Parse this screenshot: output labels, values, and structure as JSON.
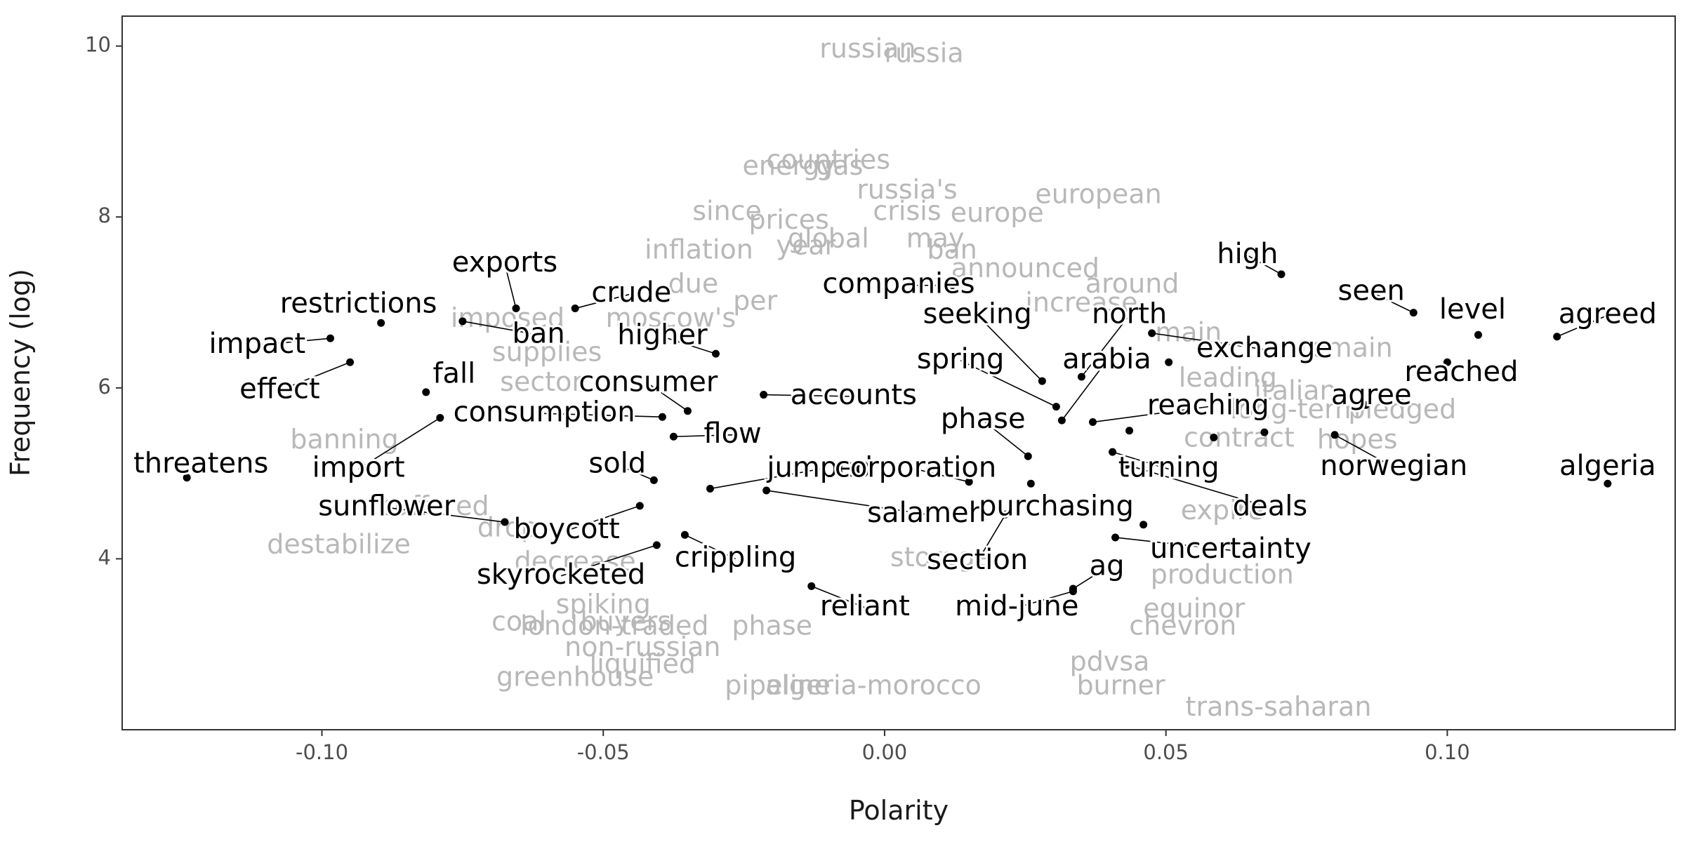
{
  "chart_data": {
    "type": "scatter",
    "xlabel": "Polarity",
    "ylabel": "Frequency (log)",
    "xlim": [
      -0.1355,
      0.1405
    ],
    "ylim": [
      2.0,
      10.35
    ],
    "x_ticks": [
      -0.1,
      -0.05,
      0.0,
      0.05,
      0.1
    ],
    "x_tick_labels": [
      "-0.10",
      "-0.05",
      "0.00",
      "0.05",
      "0.10"
    ],
    "y_ticks": [
      4,
      6,
      8,
      10
    ],
    "y_tick_labels": [
      "4",
      "6",
      "8",
      "10"
    ],
    "grid": false,
    "colors": {
      "point": "#000000",
      "background_words": "#b8b8b8",
      "panel_border": "#333333"
    },
    "background_words": [
      {
        "label": "russian",
        "x": -0.003,
        "y": 9.95
      },
      {
        "label": "russia",
        "x": 0.007,
        "y": 9.9
      },
      {
        "label": "countries",
        "x": -0.01,
        "y": 8.65
      },
      {
        "label": "energy",
        "x": -0.017,
        "y": 8.58
      },
      {
        "label": "gas",
        "x": -0.008,
        "y": 8.58
      },
      {
        "label": "russia's",
        "x": 0.004,
        "y": 8.3
      },
      {
        "label": "european",
        "x": 0.038,
        "y": 8.25
      },
      {
        "label": "since",
        "x": -0.028,
        "y": 8.05
      },
      {
        "label": "crisis",
        "x": 0.004,
        "y": 8.05
      },
      {
        "label": "europe",
        "x": 0.02,
        "y": 8.03
      },
      {
        "label": "prices",
        "x": -0.017,
        "y": 7.95
      },
      {
        "label": "global",
        "x": -0.01,
        "y": 7.73
      },
      {
        "label": "may",
        "x": 0.009,
        "y": 7.73
      },
      {
        "label": "year",
        "x": -0.014,
        "y": 7.65
      },
      {
        "label": "ban",
        "x": 0.012,
        "y": 7.6
      },
      {
        "label": "inflation",
        "x": -0.033,
        "y": 7.6
      },
      {
        "label": "announced",
        "x": 0.025,
        "y": 7.38
      },
      {
        "label": "around",
        "x": 0.044,
        "y": 7.2
      },
      {
        "label": "due",
        "x": -0.034,
        "y": 7.2
      },
      {
        "label": "per",
        "x": -0.023,
        "y": 7.0
      },
      {
        "label": "moscow's",
        "x": -0.038,
        "y": 6.8
      },
      {
        "label": "imposed",
        "x": -0.067,
        "y": 6.8
      },
      {
        "label": "increase",
        "x": 0.035,
        "y": 6.98
      },
      {
        "label": "main",
        "x": 0.054,
        "y": 6.63
      },
      {
        "label": "remain",
        "x": 0.082,
        "y": 6.45
      },
      {
        "label": "leading",
        "x": 0.061,
        "y": 6.1
      },
      {
        "label": "italian",
        "x": 0.073,
        "y": 5.95
      },
      {
        "label": "pledged",
        "x": 0.092,
        "y": 5.73
      },
      {
        "label": "long-term",
        "x": 0.073,
        "y": 5.73
      },
      {
        "label": "contract",
        "x": 0.063,
        "y": 5.4
      },
      {
        "label": "hopes",
        "x": 0.084,
        "y": 5.38
      },
      {
        "label": "banning",
        "x": -0.096,
        "y": 5.38
      },
      {
        "label": "supplies",
        "x": -0.06,
        "y": 6.4
      },
      {
        "label": "sector",
        "x": -0.061,
        "y": 6.05
      },
      {
        "label": "suffered",
        "x": -0.08,
        "y": 4.6
      },
      {
        "label": "destabilize",
        "x": -0.097,
        "y": 4.15
      },
      {
        "label": "drop",
        "x": -0.067,
        "y": 4.35
      },
      {
        "label": "decrease",
        "x": -0.055,
        "y": 3.95
      },
      {
        "label": "spiking",
        "x": -0.05,
        "y": 3.45
      },
      {
        "label": "coal",
        "x": -0.065,
        "y": 3.25
      },
      {
        "label": "buyers",
        "x": -0.046,
        "y": 3.25
      },
      {
        "label": "london-traded",
        "x": -0.048,
        "y": 3.2
      },
      {
        "label": "phase",
        "x": -0.02,
        "y": 3.2
      },
      {
        "label": "non-russian",
        "x": -0.043,
        "y": 2.95
      },
      {
        "label": "liquified",
        "x": -0.043,
        "y": 2.75
      },
      {
        "label": "greenhouse",
        "x": -0.055,
        "y": 2.6
      },
      {
        "label": "pipeline",
        "x": -0.019,
        "y": 2.5
      },
      {
        "label": "algeria-morocco",
        "x": -0.002,
        "y": 2.5
      },
      {
        "label": "pdvsa",
        "x": 0.04,
        "y": 2.78
      },
      {
        "label": "burner",
        "x": 0.042,
        "y": 2.5
      },
      {
        "label": "trans-saharan",
        "x": 0.07,
        "y": 2.25
      },
      {
        "label": "chevron",
        "x": 0.053,
        "y": 3.2
      },
      {
        "label": "equinor",
        "x": 0.055,
        "y": 3.4
      },
      {
        "label": "production",
        "x": 0.06,
        "y": 3.8
      },
      {
        "label": "expire",
        "x": 0.06,
        "y": 4.55
      },
      {
        "label": "storage",
        "x": 0.01,
        "y": 4.0
      }
    ],
    "labeled_points": [
      {
        "label": "threatens",
        "x": -0.124,
        "y": 4.95
      },
      {
        "label": "import",
        "x": -0.079,
        "y": 5.65
      },
      {
        "label": "impact",
        "x": -0.0985,
        "y": 6.58
      },
      {
        "label": "effect",
        "x": -0.095,
        "y": 6.3
      },
      {
        "label": "restrictions",
        "x": -0.0895,
        "y": 6.76
      },
      {
        "label": "fall",
        "x": -0.0815,
        "y": 5.95
      },
      {
        "label": "ban",
        "x": -0.075,
        "y": 6.78
      },
      {
        "label": "exports",
        "x": -0.0655,
        "y": 6.93
      },
      {
        "label": "crude",
        "x": -0.055,
        "y": 6.93
      },
      {
        "label": "sunflower",
        "x": -0.0675,
        "y": 4.43
      },
      {
        "label": "consumption",
        "x": -0.0395,
        "y": 5.66
      },
      {
        "label": "consumer",
        "x": -0.035,
        "y": 5.73
      },
      {
        "label": "flow",
        "x": -0.0375,
        "y": 5.43
      },
      {
        "label": "higher",
        "x": -0.03,
        "y": 6.4
      },
      {
        "label": "sold",
        "x": -0.041,
        "y": 4.92
      },
      {
        "label": "boycott",
        "x": -0.0435,
        "y": 4.62
      },
      {
        "label": "skyrocketed",
        "x": -0.0405,
        "y": 4.16
      },
      {
        "label": "crippling",
        "x": -0.0355,
        "y": 4.28
      },
      {
        "label": "jumped",
        "x": -0.031,
        "y": 4.82
      },
      {
        "label": "salameh",
        "x": -0.021,
        "y": 4.8
      },
      {
        "label": "accounts",
        "x": -0.0215,
        "y": 5.92
      },
      {
        "label": "reliant",
        "x": -0.013,
        "y": 3.68
      },
      {
        "label": "companies",
        "x": 0.012,
        "y": 7.2
      },
      {
        "label": "corporation",
        "x": 0.015,
        "y": 4.9
      },
      {
        "label": "phase",
        "x": 0.0255,
        "y": 5.2
      },
      {
        "label": "purchasing",
        "x": 0.026,
        "y": 4.88
      },
      {
        "label": "section",
        "x": 0.0215,
        "y": 4.52
      },
      {
        "label": "ag",
        "x": 0.0335,
        "y": 3.65
      },
      {
        "label": "mid-june",
        "x": 0.0335,
        "y": 3.62
      },
      {
        "label": "seeking",
        "x": 0.028,
        "y": 6.08
      },
      {
        "label": "spring",
        "x": 0.0305,
        "y": 5.78
      },
      {
        "label": "arabia",
        "x": 0.0315,
        "y": 5.62
      },
      {
        "label": "north",
        "x": 0.035,
        "y": 6.13
      },
      {
        "label": "exchange",
        "x": 0.0475,
        "y": 6.64
      },
      {
        "label": "reaching",
        "x": 0.037,
        "y": 5.6
      },
      {
        "label": "turning",
        "x": 0.0405,
        "y": 5.25
      },
      {
        "label": "deals",
        "x": 0.043,
        "y": 5.1
      },
      {
        "label": "uncertainty",
        "x": 0.041,
        "y": 4.25
      },
      {
        "label": "uncertainty",
        "x": 0.046,
        "y": 4.4
      },
      {
        "label": "reaching",
        "x": 0.0435,
        "y": 5.5
      },
      {
        "label": "exchange",
        "x": 0.0505,
        "y": 6.3
      },
      {
        "label": "high",
        "x": 0.0705,
        "y": 7.33
      },
      {
        "label": "seen",
        "x": 0.094,
        "y": 6.88
      },
      {
        "label": "level",
        "x": 0.1055,
        "y": 6.62
      },
      {
        "label": "agreed",
        "x": 0.1195,
        "y": 6.6
      },
      {
        "label": "reached",
        "x": 0.1,
        "y": 6.3
      },
      {
        "label": "agree",
        "x": 0.0855,
        "y": 5.8
      },
      {
        "label": "norwegian",
        "x": 0.08,
        "y": 5.45
      },
      {
        "label": "algeria",
        "x": 0.1285,
        "y": 4.88
      },
      {
        "label": "contract",
        "x": 0.0585,
        "y": 5.42
      },
      {
        "label": "hopes",
        "x": 0.0675,
        "y": 5.48
      }
    ],
    "text_labels": [
      {
        "label": "threatens",
        "x": -0.1215,
        "y": 5.1
      },
      {
        "label": "import",
        "x": -0.0935,
        "y": 5.05
      },
      {
        "label": "impact",
        "x": -0.1115,
        "y": 6.5
      },
      {
        "label": "effect",
        "x": -0.1075,
        "y": 5.97
      },
      {
        "label": "restrictions",
        "x": -0.0935,
        "y": 6.97
      },
      {
        "label": "fall",
        "x": -0.0765,
        "y": 6.15
      },
      {
        "label": "ban",
        "x": -0.0615,
        "y": 6.62
      },
      {
        "label": "exports",
        "x": -0.0675,
        "y": 7.45
      },
      {
        "label": "crude",
        "x": -0.045,
        "y": 7.1
      },
      {
        "label": "sunflower",
        "x": -0.0885,
        "y": 4.6
      },
      {
        "label": "consumption",
        "x": -0.0605,
        "y": 5.7
      },
      {
        "label": "consumer",
        "x": -0.042,
        "y": 6.05
      },
      {
        "label": "flow",
        "x": -0.027,
        "y": 5.45
      },
      {
        "label": "higher",
        "x": -0.0395,
        "y": 6.6
      },
      {
        "label": "sold",
        "x": -0.0475,
        "y": 5.1
      },
      {
        "label": "boycott",
        "x": -0.0565,
        "y": 4.33
      },
      {
        "label": "skyrocketed",
        "x": -0.0575,
        "y": 3.8
      },
      {
        "label": "crippling",
        "x": -0.0265,
        "y": 4.0
      },
      {
        "label": "jumped",
        "x": -0.0115,
        "y": 5.05
      },
      {
        "label": "salameh",
        "x": 0.0075,
        "y": 4.52
      },
      {
        "label": "accounts",
        "x": -0.0055,
        "y": 5.9
      },
      {
        "label": "reliant",
        "x": -0.0035,
        "y": 3.43
      },
      {
        "label": "companies",
        "x": 0.0025,
        "y": 7.2
      },
      {
        "label": "corporation",
        "x": 0.0055,
        "y": 5.05
      },
      {
        "label": "phase",
        "x": 0.0175,
        "y": 5.62
      },
      {
        "label": "purchasing",
        "x": 0.0305,
        "y": 4.6
      },
      {
        "label": "section",
        "x": 0.0165,
        "y": 3.97
      },
      {
        "label": "ag",
        "x": 0.0395,
        "y": 3.9
      },
      {
        "label": "mid-june",
        "x": 0.0235,
        "y": 3.43
      },
      {
        "label": "seeking",
        "x": 0.0165,
        "y": 6.85
      },
      {
        "label": "spring",
        "x": 0.0135,
        "y": 6.32
      },
      {
        "label": "arabia",
        "x": 0.0395,
        "y": 6.32
      },
      {
        "label": "north",
        "x": 0.0435,
        "y": 6.85
      },
      {
        "label": "exchange",
        "x": 0.0675,
        "y": 6.45
      },
      {
        "label": "reaching",
        "x": 0.0575,
        "y": 5.78
      },
      {
        "label": "turning",
        "x": 0.0505,
        "y": 5.05
      },
      {
        "label": "deals",
        "x": 0.0685,
        "y": 4.6
      },
      {
        "label": "uncertainty",
        "x": 0.0615,
        "y": 4.1
      },
      {
        "label": "high",
        "x": 0.0645,
        "y": 7.55
      },
      {
        "label": "seen",
        "x": 0.0865,
        "y": 7.12
      },
      {
        "label": "level",
        "x": 0.1045,
        "y": 6.9
      },
      {
        "label": "agreed",
        "x": 0.1285,
        "y": 6.85
      },
      {
        "label": "reached",
        "x": 0.1025,
        "y": 6.17
      },
      {
        "label": "agree",
        "x": 0.0865,
        "y": 5.9
      },
      {
        "label": "norwegian",
        "x": 0.0905,
        "y": 5.07
      },
      {
        "label": "algeria",
        "x": 0.1285,
        "y": 5.07
      }
    ]
  }
}
